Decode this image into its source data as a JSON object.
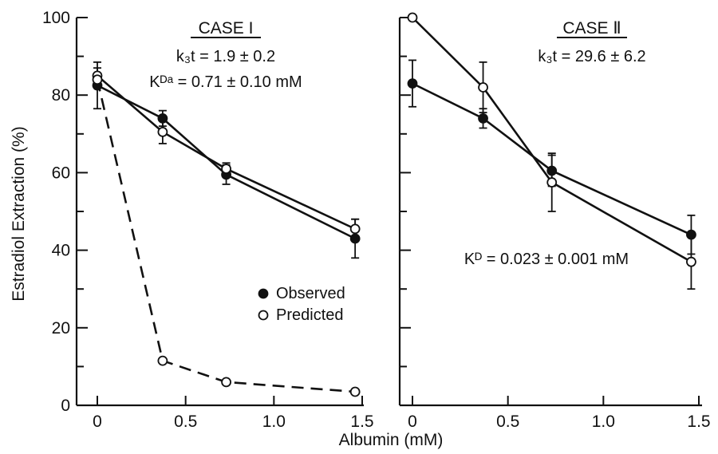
{
  "chart_data": [
    {
      "type": "line",
      "title": "CASE I",
      "title_underlined": true,
      "annotations": [
        "k₃t = 1.9 ± 0.2",
        "Kᴰᵃ = 0.71 ± 0.10 mM"
      ],
      "xlim": [
        0,
        1.5
      ],
      "ylim": [
        0,
        100
      ],
      "xticks": [
        "0",
        "0.5",
        "1.0",
        "1.5"
      ],
      "yticks": [
        "0",
        "20",
        "40",
        "60",
        "80",
        "100"
      ],
      "series": [
        {
          "name": "Observed",
          "marker": "filled-circle",
          "style": "solid",
          "x": [
            0,
            0.37,
            0.73,
            1.46
          ],
          "y": [
            82.5,
            74,
            59.5,
            43
          ],
          "err": [
            6,
            2,
            2.5,
            5
          ]
        },
        {
          "name": "Predicted",
          "marker": "open-circle",
          "style": "solid",
          "x": [
            0,
            0.37,
            0.73,
            1.46
          ],
          "y": [
            85,
            70.5,
            61,
            45.5
          ],
          "err": [
            2,
            3,
            1.5,
            2.5
          ]
        },
        {
          "name": "",
          "marker": "open-circle",
          "style": "dashed",
          "x": [
            0,
            0.37,
            0.73,
            1.46
          ],
          "y": [
            84,
            11.5,
            6,
            3.5
          ],
          "err": null
        }
      ],
      "legend": {
        "placement": "center-right",
        "items": [
          {
            "label": "Observed",
            "marker": "filled-circle"
          },
          {
            "label": "Predicted",
            "marker": "open-circle"
          }
        ]
      }
    },
    {
      "type": "line",
      "title": "CASE Ⅱ",
      "title_underlined": true,
      "annotations": [
        "k₃t = 29.6 ± 6.2",
        "Kᴰ = 0.023 ± 0.001 mM"
      ],
      "xlim": [
        0,
        1.5
      ],
      "ylim": [
        0,
        100
      ],
      "xticks": [
        "0",
        "0.5",
        "1.0",
        "1.5"
      ],
      "yticks": [],
      "series": [
        {
          "name": "Observed",
          "marker": "filled-circle",
          "style": "solid",
          "x": [
            0,
            0.37,
            0.73,
            1.46
          ],
          "y": [
            83,
            74,
            60.5,
            44
          ],
          "err": [
            6,
            2.5,
            4,
            5
          ]
        },
        {
          "name": "Predicted",
          "marker": "open-circle",
          "style": "solid",
          "x": [
            0,
            0.37,
            0.73,
            1.46
          ],
          "y": [
            100,
            82,
            57.5,
            37
          ],
          "err": [
            0,
            6.5,
            7.5,
            7
          ]
        }
      ]
    }
  ],
  "ylabel": "Estradiol  Extraction  (%)",
  "xlabel": "Albumin (mM)"
}
